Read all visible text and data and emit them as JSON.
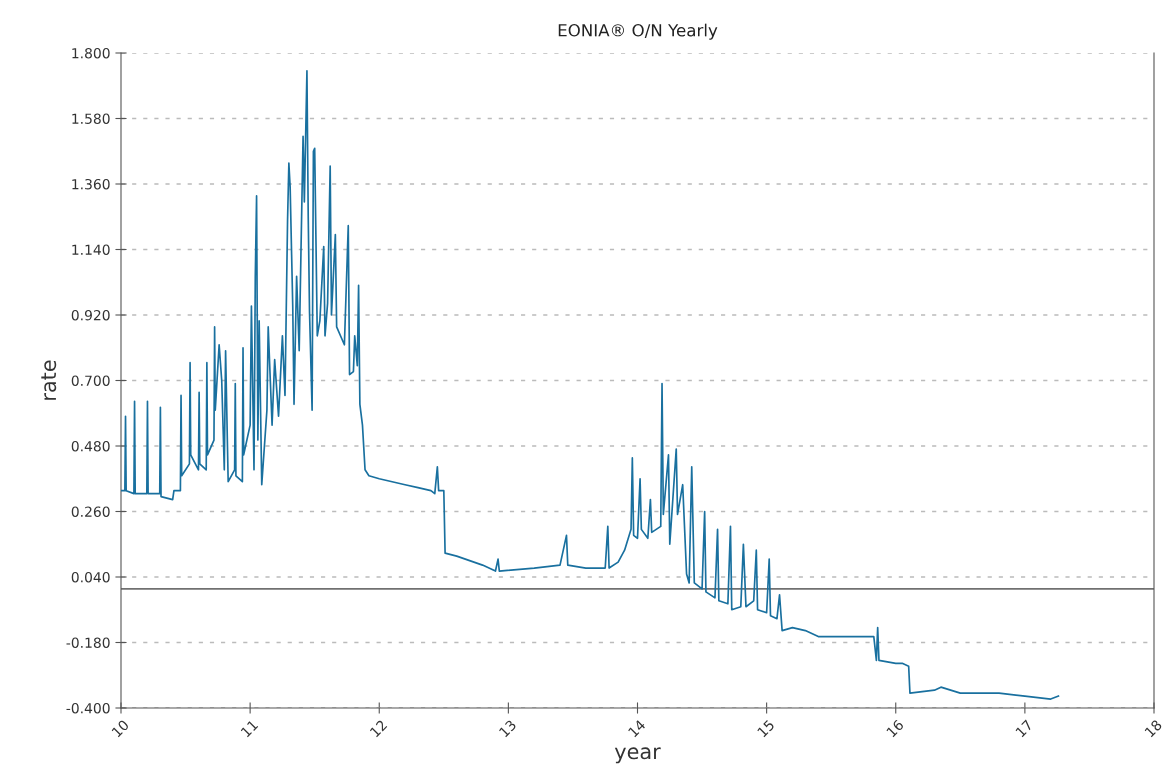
{
  "chart_data": {
    "type": "line",
    "title": "EONIA® O/N Yearly",
    "xlabel": "year",
    "ylabel": "rate",
    "xlim": [
      10,
      18
    ],
    "xticks": [
      10,
      11,
      12,
      13,
      14,
      15,
      16,
      17,
      18
    ],
    "ylim": [
      -0.4,
      1.8
    ],
    "yticks": [
      {
        "value": -0.4,
        "label": "-0.400"
      },
      {
        "value": -0.18,
        "label": "-0.180"
      },
      {
        "value": 0.04,
        "label": "0.040"
      },
      {
        "value": 0.26,
        "label": "0.260"
      },
      {
        "value": 0.48,
        "label": "0.480"
      },
      {
        "value": 0.7,
        "label": "0.700"
      },
      {
        "value": 0.92,
        "label": "0.920"
      },
      {
        "value": 1.14,
        "label": "1.140"
      },
      {
        "value": 1.36,
        "label": "1.360"
      },
      {
        "value": 1.58,
        "label": "1.580"
      },
      {
        "value": 1.8,
        "label": "1.800"
      }
    ],
    "grid": "y",
    "line_style": "solid",
    "marker": "none",
    "ref_lines": [
      {
        "axis": "y",
        "value": 0,
        "color": "#707070"
      }
    ],
    "series": [
      {
        "color": "#19709f",
        "x": [
          10.0,
          10.03,
          10.035,
          10.04,
          10.1,
          10.105,
          10.11,
          10.2,
          10.205,
          10.21,
          10.3,
          10.305,
          10.31,
          10.4,
          10.41,
          10.46,
          10.465,
          10.47,
          10.53,
          10.535,
          10.54,
          10.6,
          10.605,
          10.61,
          10.66,
          10.665,
          10.67,
          10.72,
          10.725,
          10.73,
          10.76,
          10.78,
          10.8,
          10.81,
          10.83,
          10.88,
          10.885,
          10.89,
          10.94,
          10.945,
          10.95,
          11.0,
          11.01,
          11.03,
          11.04,
          11.05,
          11.06,
          11.07,
          11.09,
          11.13,
          11.14,
          11.17,
          11.19,
          11.22,
          11.25,
          11.27,
          11.29,
          11.3,
          11.31,
          11.33,
          11.34,
          11.36,
          11.38,
          11.41,
          11.42,
          11.44,
          11.45,
          11.46,
          11.48,
          11.49,
          11.5,
          11.52,
          11.54,
          11.57,
          11.58,
          11.6,
          11.62,
          11.63,
          11.66,
          11.67,
          11.73,
          11.76,
          11.77,
          11.8,
          11.81,
          11.83,
          11.84,
          11.85,
          11.87,
          11.89,
          11.92,
          12.0,
          12.1,
          12.2,
          12.3,
          12.4,
          12.43,
          12.45,
          12.46,
          12.5,
          12.51,
          12.6,
          12.8,
          12.9,
          12.92,
          12.93,
          13.2,
          13.4,
          13.45,
          13.46,
          13.6,
          13.75,
          13.77,
          13.78,
          13.85,
          13.9,
          13.95,
          13.96,
          13.97,
          14.0,
          14.02,
          14.03,
          14.08,
          14.1,
          14.11,
          14.18,
          14.19,
          14.2,
          14.24,
          14.25,
          14.3,
          14.31,
          14.35,
          14.38,
          14.4,
          14.42,
          14.44,
          14.5,
          14.52,
          14.53,
          14.6,
          14.62,
          14.63,
          14.7,
          14.72,
          14.73,
          14.8,
          14.82,
          14.84,
          14.9,
          14.92,
          14.93,
          15.0,
          15.02,
          15.03,
          15.08,
          15.1,
          15.12,
          15.2,
          15.3,
          15.4,
          15.5,
          15.7,
          15.83,
          15.85,
          15.86,
          15.87,
          16.0,
          16.05,
          16.1,
          16.11,
          16.3,
          16.35,
          16.5,
          16.8,
          17.0,
          17.2,
          17.26
        ],
        "values": [
          0.33,
          0.33,
          0.58,
          0.33,
          0.32,
          0.63,
          0.32,
          0.32,
          0.63,
          0.32,
          0.32,
          0.61,
          0.31,
          0.3,
          0.33,
          0.33,
          0.65,
          0.38,
          0.42,
          0.76,
          0.45,
          0.4,
          0.66,
          0.42,
          0.4,
          0.76,
          0.45,
          0.5,
          0.88,
          0.6,
          0.82,
          0.7,
          0.4,
          0.8,
          0.36,
          0.4,
          0.69,
          0.38,
          0.36,
          0.81,
          0.45,
          0.55,
          0.95,
          0.4,
          1.05,
          1.32,
          0.5,
          0.9,
          0.35,
          0.6,
          0.88,
          0.55,
          0.77,
          0.58,
          0.85,
          0.65,
          1.24,
          1.43,
          1.35,
          0.95,
          0.62,
          1.05,
          0.8,
          1.52,
          1.3,
          1.74,
          1.25,
          0.93,
          0.6,
          1.47,
          1.48,
          0.85,
          0.9,
          1.15,
          0.85,
          0.96,
          1.42,
          0.92,
          1.19,
          0.88,
          0.82,
          1.22,
          0.72,
          0.73,
          0.85,
          0.75,
          1.02,
          0.62,
          0.55,
          0.4,
          0.38,
          0.37,
          0.36,
          0.35,
          0.34,
          0.33,
          0.32,
          0.41,
          0.33,
          0.33,
          0.12,
          0.11,
          0.08,
          0.06,
          0.1,
          0.06,
          0.07,
          0.08,
          0.18,
          0.08,
          0.07,
          0.07,
          0.21,
          0.07,
          0.09,
          0.13,
          0.2,
          0.44,
          0.18,
          0.17,
          0.37,
          0.2,
          0.17,
          0.3,
          0.19,
          0.21,
          0.69,
          0.25,
          0.45,
          0.15,
          0.47,
          0.25,
          0.35,
          0.05,
          0.02,
          0.41,
          0.02,
          0.0,
          0.26,
          -0.01,
          -0.03,
          0.2,
          -0.04,
          -0.05,
          0.21,
          -0.07,
          -0.06,
          0.15,
          -0.06,
          -0.04,
          0.13,
          -0.07,
          -0.08,
          0.1,
          -0.09,
          -0.1,
          -0.02,
          -0.14,
          -0.13,
          -0.14,
          -0.16,
          -0.16,
          -0.16,
          -0.16,
          -0.24,
          -0.13,
          -0.24,
          -0.25,
          -0.25,
          -0.26,
          -0.35,
          -0.34,
          -0.33,
          -0.35,
          -0.35,
          -0.36,
          -0.37,
          -0.36
        ]
      }
    ]
  }
}
